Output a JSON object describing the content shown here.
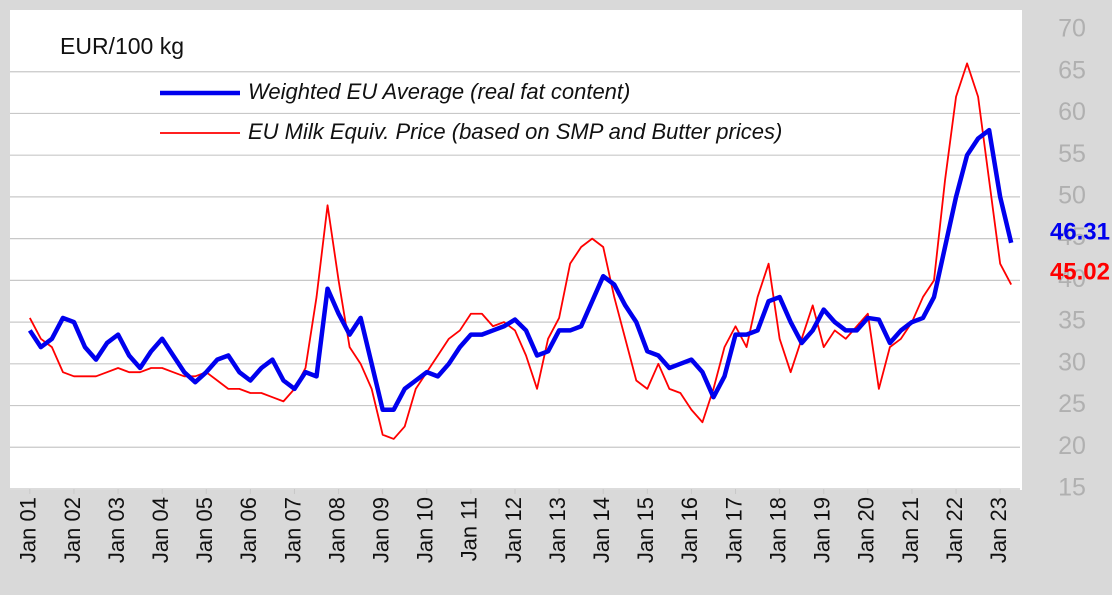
{
  "chart_data": {
    "type": "line",
    "unit_label": "EUR/100 kg",
    "x": [
      2001,
      2001.25,
      2001.5,
      2001.75,
      2002,
      2002.25,
      2002.5,
      2002.75,
      2003,
      2003.25,
      2003.5,
      2003.75,
      2004,
      2004.25,
      2004.5,
      2004.75,
      2005,
      2005.25,
      2005.5,
      2005.75,
      2006,
      2006.25,
      2006.5,
      2006.75,
      2007,
      2007.25,
      2007.5,
      2007.75,
      2008,
      2008.25,
      2008.5,
      2008.75,
      2009,
      2009.25,
      2009.5,
      2009.75,
      2010,
      2010.25,
      2010.5,
      2010.75,
      2011,
      2011.25,
      2011.5,
      2011.75,
      2012,
      2012.25,
      2012.5,
      2012.75,
      2013,
      2013.25,
      2013.5,
      2013.75,
      2014,
      2014.25,
      2014.5,
      2014.75,
      2015,
      2015.25,
      2015.5,
      2015.75,
      2016,
      2016.25,
      2016.5,
      2016.75,
      2017,
      2017.25,
      2017.5,
      2017.75,
      2018,
      2018.25,
      2018.5,
      2018.75,
      2019,
      2019.25,
      2019.5,
      2019.75,
      2020,
      2020.25,
      2020.5,
      2020.75,
      2021,
      2021.25,
      2021.5,
      2021.75,
      2022,
      2022.25,
      2022.5,
      2022.75,
      2023,
      2023.25
    ],
    "series": [
      {
        "name": "Weighted EU Average (real fat content)",
        "color": "#0000ee",
        "width": 4.5,
        "values": [
          34,
          32,
          33,
          35.5,
          35,
          32,
          30.5,
          32.5,
          33.5,
          31,
          29.5,
          31.5,
          33,
          31,
          29,
          27.8,
          29,
          30.5,
          31,
          29,
          28,
          29.5,
          30.5,
          28,
          27,
          29,
          28.5,
          39,
          36,
          33.5,
          35.5,
          30,
          24.5,
          24.5,
          27,
          28,
          29,
          28.5,
          30,
          32,
          33.5,
          33.5,
          34,
          34.5,
          35.3,
          34,
          31,
          31.5,
          34,
          34,
          34.5,
          37.5,
          40.5,
          39.5,
          37,
          35,
          31.5,
          31,
          29.5,
          30,
          30.5,
          29,
          26,
          28.5,
          33.5,
          33.5,
          34,
          37.5,
          38,
          35,
          32.5,
          34,
          36.5,
          35,
          34,
          34,
          35.5,
          35.3,
          32.5,
          34,
          35,
          35.5,
          38,
          44,
          50,
          55,
          57,
          58,
          50,
          44.5
        ]
      },
      {
        "name": "EU Milk Equiv. Price (based on SMP and Butter prices)",
        "color": "#ff0000",
        "width": 1.8,
        "values": [
          35.5,
          33,
          32,
          29,
          28.5,
          28.5,
          28.5,
          29,
          29.5,
          29,
          29,
          29.5,
          29.5,
          29,
          28.5,
          28.5,
          29,
          28,
          27,
          27,
          26.5,
          26.5,
          26,
          25.5,
          27,
          29.5,
          38,
          49,
          40,
          32,
          30,
          27,
          21.5,
          21,
          22.5,
          27,
          29,
          31,
          33,
          34,
          36,
          36,
          34.5,
          35,
          34,
          31,
          27,
          33,
          35.5,
          42,
          44,
          45,
          44,
          38,
          33,
          28,
          27,
          30,
          27,
          26.5,
          24.5,
          23,
          27,
          32,
          34.5,
          32,
          38,
          42,
          33,
          29,
          33,
          37,
          32,
          34,
          33,
          34.5,
          36,
          27,
          32,
          33,
          35,
          38,
          40,
          52,
          62,
          66,
          62,
          52,
          42,
          39.5
        ]
      }
    ],
    "annotations": [
      {
        "text": "46.31",
        "color": "#0000ee"
      },
      {
        "text": "45.02",
        "color": "#ff0000"
      }
    ],
    "xlim": [
      2000.55,
      2023.45
    ],
    "xticks": [
      {
        "value": 2001,
        "label": "Jan 01"
      },
      {
        "value": 2002,
        "label": "Jan 02"
      },
      {
        "value": 2003,
        "label": "Jan 03"
      },
      {
        "value": 2004,
        "label": "Jan 04"
      },
      {
        "value": 2005,
        "label": "Jan 05"
      },
      {
        "value": 2006,
        "label": "Jan 06"
      },
      {
        "value": 2007,
        "label": "Jan 07"
      },
      {
        "value": 2008,
        "label": "Jan 08"
      },
      {
        "value": 2009,
        "label": "Jan 09"
      },
      {
        "value": 2010,
        "label": "Jan 10"
      },
      {
        "value": 2011,
        "label": "Jan 11"
      },
      {
        "value": 2012,
        "label": "Jan 12"
      },
      {
        "value": 2013,
        "label": "Jan 13"
      },
      {
        "value": 2014,
        "label": "Jan 14"
      },
      {
        "value": 2015,
        "label": "Jan 15"
      },
      {
        "value": 2016,
        "label": "Jan 16"
      },
      {
        "value": 2017,
        "label": "Jan 17"
      },
      {
        "value": 2018,
        "label": "Jan 18"
      },
      {
        "value": 2019,
        "label": "Jan 19"
      },
      {
        "value": 2020,
        "label": "Jan 20"
      },
      {
        "value": 2021,
        "label": "Jan 21"
      },
      {
        "value": 2022,
        "label": "Jan 22"
      },
      {
        "value": 2023,
        "label": "Jan 23"
      }
    ],
    "ylim": [
      15,
      70
    ],
    "yticks": [
      15,
      20,
      25,
      30,
      35,
      40,
      45,
      50,
      55,
      60,
      65,
      70
    ],
    "grid": true
  }
}
